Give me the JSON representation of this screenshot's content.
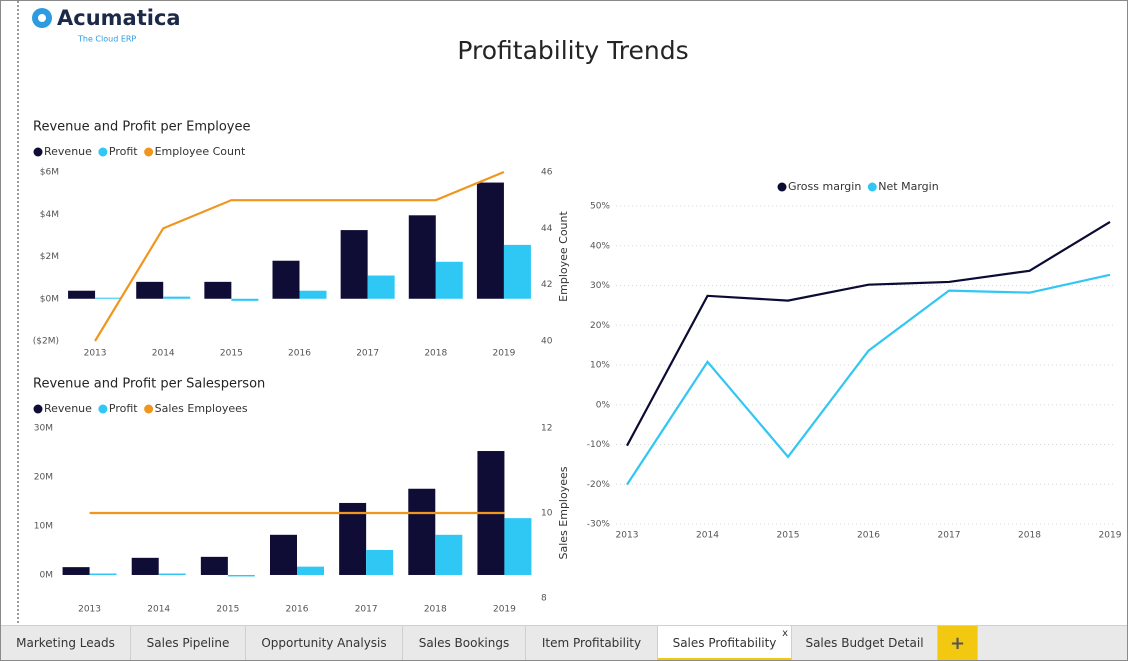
{
  "header": {
    "logo": "Acumatica",
    "tagline": "The Cloud ERP",
    "title": "Profitability Trends"
  },
  "chart_data": [
    {
      "type": "combo",
      "title": "Revenue and Profit per Employee",
      "categories": [
        "2013",
        "2014",
        "2015",
        "2016",
        "2017",
        "2018",
        "2019"
      ],
      "series": [
        {
          "name": "Revenue",
          "color": "#0f0c36",
          "values": [
            380000,
            800000,
            800000,
            1800000,
            3250000,
            3950000,
            5500000
          ]
        },
        {
          "name": "Profit",
          "color": "#2fc8f5",
          "values": [
            50000,
            100000,
            -100000,
            380000,
            1100000,
            1750000,
            2550000
          ]
        },
        {
          "name": "Employee Count",
          "color": "#f0961e",
          "axis": "y2",
          "values": [
            40,
            44,
            45,
            45,
            45,
            45,
            46
          ]
        }
      ],
      "ylim": [
        -2000000,
        6000000
      ],
      "yticks": [
        {
          "value": -2000000,
          "label": "($2M)"
        },
        {
          "value": 0,
          "label": "$0M"
        },
        {
          "value": 2000000,
          "label": "$2M"
        },
        {
          "value": 4000000,
          "label": "$4M"
        },
        {
          "value": 6000000,
          "label": "$6M"
        }
      ],
      "y2lim": [
        40,
        46
      ],
      "y2ticks": [
        40,
        42,
        44,
        46
      ],
      "y2label": "Employee Count",
      "grid": false
    },
    {
      "type": "combo",
      "title": "Revenue and Profit per Salesperson",
      "categories": [
        "2013",
        "2014",
        "2015",
        "2016",
        "2017",
        "2018",
        "2019"
      ],
      "series": [
        {
          "name": "Revenue",
          "color": "#0f0c36",
          "values": [
            1600000,
            3500000,
            3700000,
            8200000,
            14700000,
            17600000,
            25300000
          ]
        },
        {
          "name": "Profit",
          "color": "#2fc8f5",
          "values": [
            300000,
            300000,
            -300000,
            1700000,
            5100000,
            8200000,
            11600000
          ]
        },
        {
          "name": "Sales Employees",
          "color": "#f0961e",
          "axis": "y2",
          "values": [
            10,
            10,
            10,
            10,
            10,
            10,
            10
          ]
        }
      ],
      "ylim": [
        -4700000,
        30000000
      ],
      "yticks": [
        {
          "value": 0,
          "label": "0M"
        },
        {
          "value": 10000000,
          "label": "10M"
        },
        {
          "value": 20000000,
          "label": "20M"
        },
        {
          "value": 30000000,
          "label": "30M"
        }
      ],
      "y2lim": [
        8,
        12
      ],
      "y2ticks": [
        8,
        10,
        12
      ],
      "y2label": "Sales Employees",
      "grid": false
    },
    {
      "type": "line",
      "categories": [
        "2013",
        "2014",
        "2015",
        "2016",
        "2017",
        "2018",
        "2019"
      ],
      "series": [
        {
          "name": "Gross margin",
          "color": "#0b0b33",
          "values": [
            -10.3,
            27.4,
            26.2,
            30.2,
            30.9,
            33.7,
            46.0
          ]
        },
        {
          "name": "Net Margin",
          "color": "#32c6f4",
          "values": [
            -20.1,
            10.8,
            -13.1,
            13.6,
            28.7,
            28.2,
            32.7
          ]
        }
      ],
      "ylim": [
        -30,
        50
      ],
      "yticks": [
        {
          "value": -30,
          "label": "-30%"
        },
        {
          "value": -20,
          "label": "-20%"
        },
        {
          "value": -10,
          "label": "-10%"
        },
        {
          "value": 0,
          "label": "0%"
        },
        {
          "value": 10,
          "label": "10%"
        },
        {
          "value": 20,
          "label": "20%"
        },
        {
          "value": 30,
          "label": "30%"
        },
        {
          "value": 40,
          "label": "40%"
        },
        {
          "value": 50,
          "label": "50%"
        }
      ],
      "grid": true
    }
  ],
  "tabs": [
    "Marketing Leads",
    "Sales Pipeline",
    "Opportunity Analysis",
    "Sales Bookings",
    "Item Profitability",
    "Sales Profitability",
    "Sales Budget Detail"
  ],
  "close": "x",
  "add": "+"
}
